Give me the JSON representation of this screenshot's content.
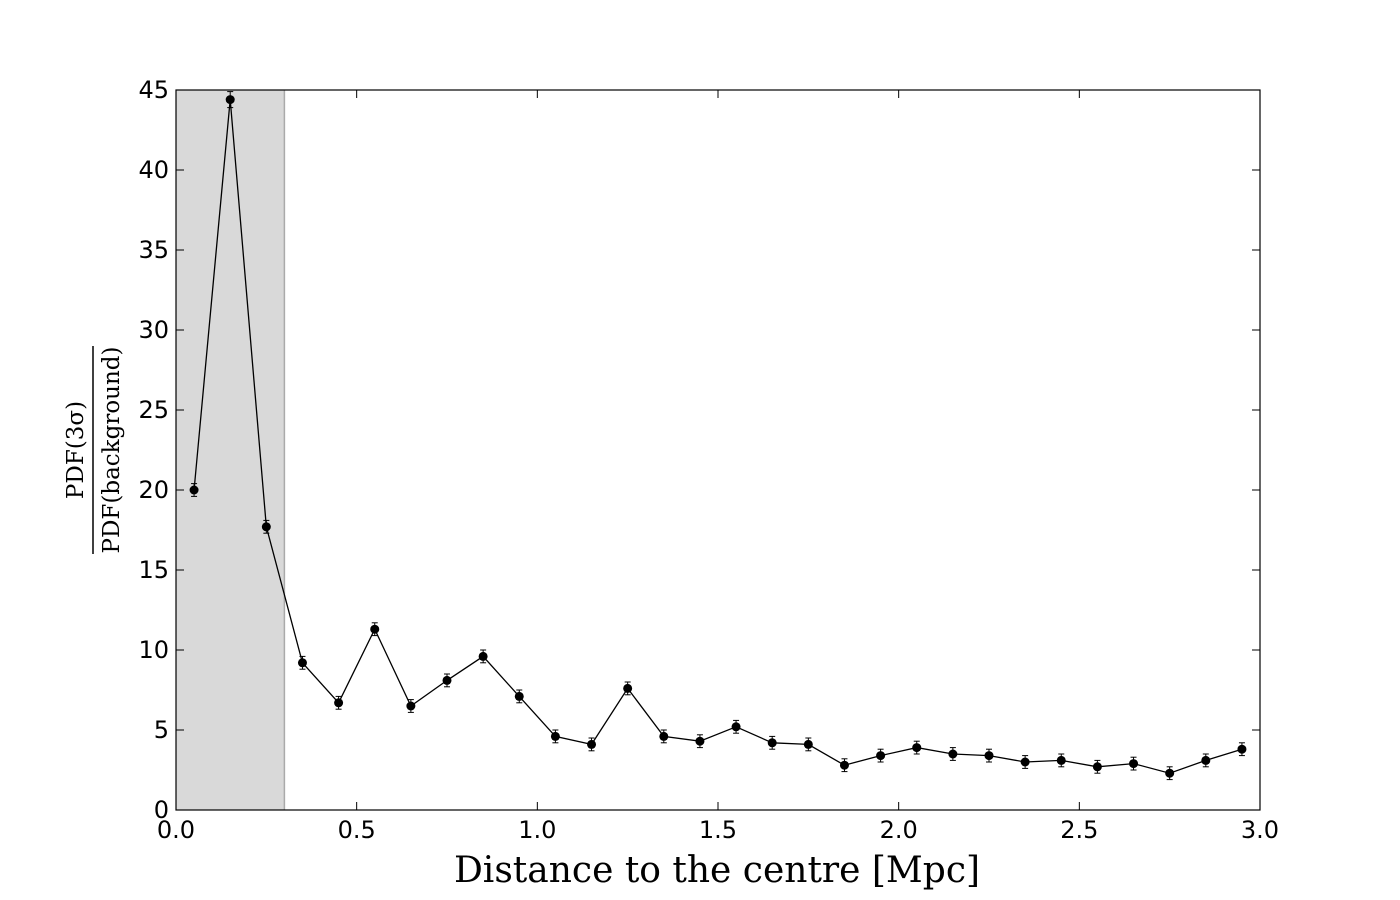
{
  "chart_data": {
    "type": "line",
    "title": "",
    "xlabel": "Distance to the centre [Mpc]",
    "ylabel_numerator": "PDF(3σ)",
    "ylabel_denominator": "PDF(background)",
    "xlim": [
      0.0,
      3.0
    ],
    "ylim": [
      0,
      45
    ],
    "x_ticks": [
      0.0,
      0.5,
      1.0,
      1.5,
      2.0,
      2.5,
      3.0
    ],
    "x_tick_labels": [
      "0.0",
      "0.5",
      "1.0",
      "1.5",
      "2.0",
      "2.5",
      "3.0"
    ],
    "y_ticks": [
      0,
      5,
      10,
      15,
      20,
      25,
      30,
      35,
      40,
      45
    ],
    "y_tick_labels": [
      "0",
      "5",
      "10",
      "15",
      "20",
      "25",
      "30",
      "35",
      "40",
      "45"
    ],
    "grid": false,
    "legend": "none",
    "shaded_region": {
      "x_from": 0.0,
      "x_to": 0.3,
      "color": "#d9d9d9"
    },
    "series": [
      {
        "color": "#000000",
        "marker": "circle",
        "x": [
          0.05,
          0.15,
          0.25,
          0.35,
          0.45,
          0.55,
          0.65,
          0.75,
          0.85,
          0.95,
          1.05,
          1.15,
          1.25,
          1.35,
          1.45,
          1.55,
          1.65,
          1.75,
          1.85,
          1.95,
          2.05,
          2.15,
          2.25,
          2.35,
          2.45,
          2.55,
          2.65,
          2.75,
          2.85,
          2.95
        ],
        "y": [
          20.0,
          44.4,
          17.7,
          9.2,
          6.7,
          11.3,
          6.5,
          8.1,
          9.6,
          7.1,
          4.6,
          4.1,
          7.6,
          4.6,
          4.3,
          5.2,
          4.2,
          4.1,
          2.8,
          3.4,
          3.9,
          3.5,
          3.4,
          3.0,
          3.1,
          2.7,
          2.9,
          2.3,
          3.1,
          3.8
        ],
        "yerr": [
          0.4,
          0.5,
          0.4,
          0.4,
          0.4,
          0.4,
          0.4,
          0.4,
          0.4,
          0.4,
          0.4,
          0.4,
          0.4,
          0.4,
          0.4,
          0.4,
          0.4,
          0.4,
          0.4,
          0.4,
          0.4,
          0.4,
          0.4,
          0.4,
          0.4,
          0.4,
          0.4,
          0.4,
          0.4,
          0.4
        ]
      }
    ]
  }
}
